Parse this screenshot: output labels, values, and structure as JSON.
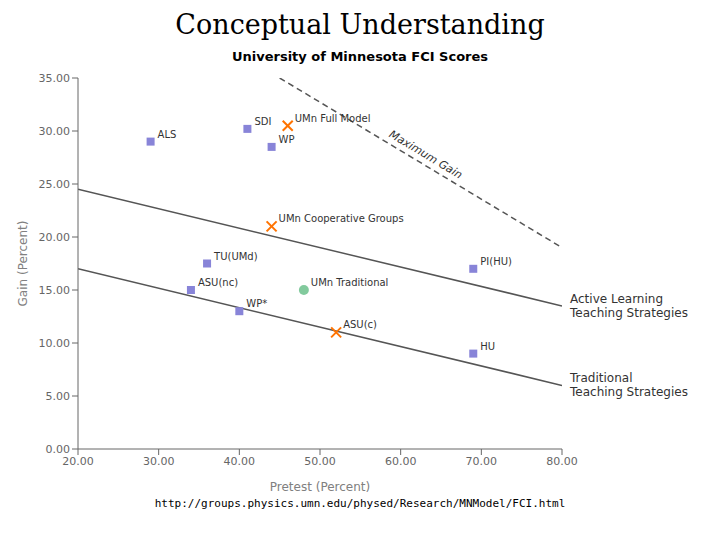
{
  "chart_data": {
    "type": "scatter",
    "title": "Conceptual Understanding",
    "subtitle": "University of Minnesota FCI Scores",
    "xlabel": "Pretest (Percent)",
    "ylabel": "Gain (Percent)",
    "url": "http://groups.physics.umn.edu/physed/Research/MNModel/FCI.html",
    "xlim": [
      20,
      80
    ],
    "ylim": [
      0,
      35
    ],
    "xticks": [
      {
        "value": 20,
        "label": "20.00"
      },
      {
        "value": 30,
        "label": "30.00"
      },
      {
        "value": 40,
        "label": "40.00"
      },
      {
        "value": 50,
        "label": "50.00"
      },
      {
        "value": 60,
        "label": "60.00"
      },
      {
        "value": 70,
        "label": "70.00"
      },
      {
        "value": 80,
        "label": "80.00"
      }
    ],
    "yticks": [
      {
        "value": 0,
        "label": "0.00"
      },
      {
        "value": 5,
        "label": "5.00"
      },
      {
        "value": 10,
        "label": "10.00"
      },
      {
        "value": 15,
        "label": "15.00"
      },
      {
        "value": 20,
        "label": "20.00"
      },
      {
        "value": 25,
        "label": "25.00"
      },
      {
        "value": 30,
        "label": "30.00"
      },
      {
        "value": 35,
        "label": "35.00"
      }
    ],
    "grid": false,
    "points": [
      {
        "x": 29,
        "y": 29,
        "label": "ALS",
        "marker": "square"
      },
      {
        "x": 41,
        "y": 30.2,
        "label": "SDI",
        "marker": "square"
      },
      {
        "x": 44,
        "y": 28.5,
        "label": "WP",
        "marker": "square"
      },
      {
        "x": 36,
        "y": 17.5,
        "label": "TU(UMd)",
        "marker": "square"
      },
      {
        "x": 69,
        "y": 17,
        "label": "PI(HU)",
        "marker": "square"
      },
      {
        "x": 34,
        "y": 15,
        "label": "ASU(nc)",
        "marker": "square"
      },
      {
        "x": 40,
        "y": 13,
        "label": "WP*",
        "marker": "square"
      },
      {
        "x": 69,
        "y": 9,
        "label": "HU",
        "marker": "square"
      },
      {
        "x": 48,
        "y": 15,
        "label": "UMn Traditional",
        "marker": "circle"
      },
      {
        "x": 46,
        "y": 30.5,
        "label": "UMn Full Model",
        "marker": "x"
      },
      {
        "x": 44,
        "y": 21,
        "label": "UMn Cooperative Groups",
        "marker": "x"
      },
      {
        "x": 52,
        "y": 11,
        "label": "ASU(c)",
        "marker": "x"
      }
    ],
    "lines": [
      {
        "x": [
          20,
          80
        ],
        "values": [
          24.5,
          13.5
        ],
        "label": "Active Learning\nTeaching Strategies",
        "line_style": "solid"
      },
      {
        "x": [
          20,
          80
        ],
        "values": [
          17.0,
          6.0
        ],
        "label": "Traditional\nTeaching Strategies",
        "line_style": "solid"
      },
      {
        "x": [
          45,
          80
        ],
        "values": [
          35,
          19.0
        ],
        "label": "Maximum Gain",
        "line_style": "dashed"
      }
    ]
  }
}
